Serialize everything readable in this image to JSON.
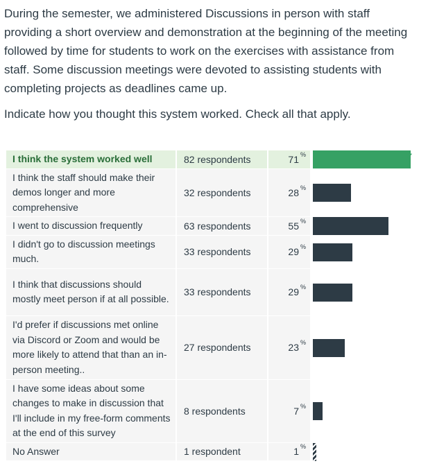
{
  "question": {
    "text": "During the semester, we administered Discussions in person with staff providing a short overview and demonstration at the beginning of the meeting followed by time for students to work on the exercises with assistance from staff. Some discussion meetings were devoted to assisting students with completing projects as deadlines came up.",
    "prompt": "Indicate how you thought this system worked. Check all that apply."
  },
  "answers": [
    {
      "text": "I think the system worked well",
      "count": "82 respondents",
      "percent": "71",
      "value": 0.71,
      "correct": true
    },
    {
      "text": "I think the staff should make their demos longer and more comprehensive",
      "count": "32 respondents",
      "percent": "28",
      "value": 0.28,
      "correct": false
    },
    {
      "text": "I went to discussion frequently",
      "count": "63 respondents",
      "percent": "55",
      "value": 0.55,
      "correct": false
    },
    {
      "text": "I didn't go to discussion meetings much.",
      "count": "33 respondents",
      "percent": "29",
      "value": 0.29,
      "correct": false
    },
    {
      "text": "I think that discussions should mostly meet person if at all possible.",
      "count": "33 respondents",
      "percent": "29",
      "value": 0.29,
      "correct": false
    },
    {
      "text": "I'd prefer if discussions met online via Discord or Zoom and would be more likely to attend that than an in-person meeting..",
      "count": "27 respondents",
      "percent": "23",
      "value": 0.23,
      "correct": false
    },
    {
      "text": "I have some ideas about some changes to make in discussion that I'll include in my free-form comments at the end of this survey",
      "count": "8 respondents",
      "percent": "7",
      "value": 0.07,
      "correct": false
    },
    {
      "text": "No Answer",
      "count": "1 respondent",
      "percent": "1",
      "value": 0.01,
      "correct": false
    }
  ],
  "percent_sign": "%",
  "colors": {
    "correct_bar": "#36a164",
    "bar": "#2d3b45",
    "correct_bg": "#e3f1df",
    "row_bg": "#f5f5f5",
    "correct_text": "#2a6e39"
  },
  "icons": {
    "correct_marker": "check-icon"
  }
}
